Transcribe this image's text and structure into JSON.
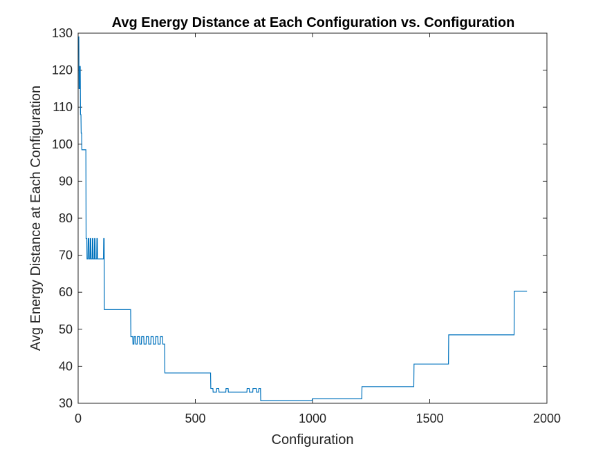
{
  "chart_data": {
    "type": "line",
    "title": "Avg Energy Distance at Each Configuration vs. Configuration",
    "xlabel": "Configuration",
    "ylabel": "Avg Energy Distance at Each Configuration",
    "xlim": [
      0,
      2000
    ],
    "ylim": [
      30,
      130
    ],
    "xticks": [
      0,
      500,
      1000,
      1500,
      2000
    ],
    "yticks": [
      30,
      40,
      50,
      60,
      70,
      80,
      90,
      100,
      110,
      120,
      130
    ],
    "grid": false,
    "legend": "none",
    "line_color": "#0072BD",
    "series": [
      {
        "x": [
          1,
          3,
          4,
          6,
          7,
          9,
          10,
          12,
          13,
          15,
          16,
          33,
          34,
          37,
          38,
          42,
          43,
          46,
          47,
          51,
          52,
          54,
          55,
          60,
          61,
          63,
          64,
          69,
          70,
          72,
          73,
          79,
          80,
          82,
          83,
          108,
          109,
          111,
          112,
          224,
          225,
          233,
          234,
          238,
          239,
          245,
          246,
          252,
          253,
          262,
          263,
          270,
          271,
          280,
          281,
          290,
          291,
          300,
          301,
          310,
          311,
          320,
          321,
          330,
          331,
          340,
          341,
          350,
          351,
          360,
          361,
          369,
          370,
          565,
          566,
          575,
          576,
          590,
          591,
          600,
          601,
          630,
          631,
          640,
          641,
          720,
          721,
          730,
          731,
          745,
          746,
          760,
          761,
          770,
          771,
          778,
          779,
          998,
          999,
          1210,
          1211,
          1432,
          1433,
          1580,
          1581,
          1860,
          1861,
          1915
        ],
        "y": [
          129,
          129,
          115,
          115,
          121,
          121,
          108,
          108,
          103,
          103,
          98.5,
          98.5,
          74.5,
          74.5,
          69,
          69,
          74.5,
          74.5,
          69,
          69,
          74.5,
          74.5,
          69,
          69,
          74.5,
          74.5,
          69,
          69,
          74.5,
          74.5,
          69,
          69,
          74.5,
          74.5,
          69,
          69,
          74.5,
          74.5,
          55.3,
          55.3,
          48,
          48,
          46,
          46,
          48,
          48,
          46,
          46,
          48,
          48,
          46,
          46,
          48,
          48,
          46,
          46,
          48,
          48,
          46,
          46,
          48,
          48,
          46,
          46,
          48,
          48,
          46,
          46,
          48,
          48,
          46,
          46,
          38.2,
          38.2,
          34,
          34,
          33,
          33,
          34,
          34,
          33,
          33,
          34,
          34,
          33,
          33,
          34,
          34,
          33,
          33,
          34,
          34,
          33,
          33,
          34,
          34,
          30.7,
          30.7,
          31.2,
          31.2,
          34.5,
          34.5,
          40.6,
          40.6,
          48.5,
          48.5,
          60.3,
          60.3
        ]
      }
    ]
  }
}
